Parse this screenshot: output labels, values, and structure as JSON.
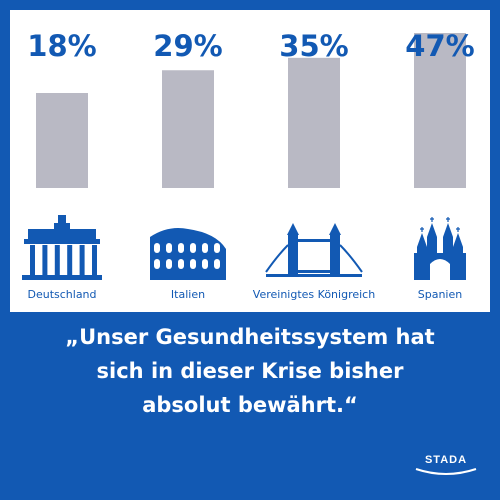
{
  "colors": {
    "brand_blue": "#1259b3",
    "bar_gray": "#b9b9c4",
    "value_blue": "#1259b3",
    "white": "#ffffff"
  },
  "chart_data": {
    "type": "bar",
    "categories": [
      "Deutschland",
      "Italien",
      "Vereinigtes Königreich",
      "Spanien"
    ],
    "values": [
      18,
      29,
      35,
      47
    ],
    "value_labels": [
      "18%",
      "29%",
      "35%",
      "47%"
    ],
    "icons": [
      "brandenburg-gate-icon",
      "colosseum-icon",
      "tower-bridge-icon",
      "sagrada-familia-icon"
    ],
    "title": "",
    "xlabel": "",
    "ylabel": ""
  },
  "quote": {
    "lines": [
      "„Unser Gesundheitssystem hat",
      "sich in dieser Krise bisher",
      "absolut bewährt.“"
    ]
  },
  "logo": {
    "text": "STADA"
  }
}
